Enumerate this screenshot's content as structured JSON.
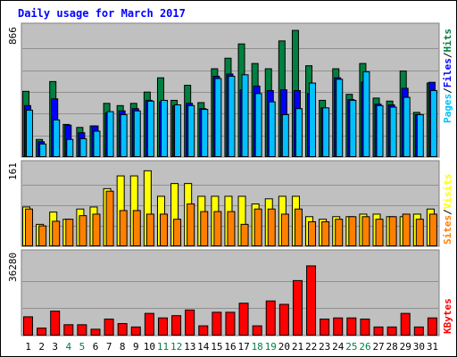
{
  "title": "Daily usage for March 2017",
  "panels": {
    "hits": {
      "max_label": "866",
      "labels": [
        "Pages",
        "Files",
        "Hits"
      ]
    },
    "visits": {
      "max_label": "161",
      "labels": [
        "Sites",
        "Visits"
      ]
    },
    "kbytes": {
      "max_label": "36280",
      "labels": [
        "KBytes"
      ]
    }
  },
  "colors": {
    "background": "#ffffff",
    "panel": "#c0c0c0",
    "border": "#808080",
    "grid": "#909090",
    "title": "#0000ff",
    "hits": "#008040",
    "files": "#0000ff",
    "pages": "#00c0ff",
    "visits": "#ffff00",
    "sites": "#ff8000",
    "kbytes": "#ff0000",
    "weekday_label": "#000000",
    "weekend_label": "#008040"
  },
  "chart_data": [
    {
      "type": "bar",
      "title": "Daily usage for March 2017",
      "categories": [
        "1",
        "2",
        "3",
        "4",
        "5",
        "6",
        "7",
        "8",
        "9",
        "10",
        "11",
        "12",
        "13",
        "14",
        "15",
        "16",
        "17",
        "18",
        "19",
        "20",
        "21",
        "22",
        "23",
        "24",
        "25",
        "26",
        "27",
        "28",
        "29",
        "30",
        "31"
      ],
      "weekend_days": [
        4,
        5,
        11,
        12,
        18,
        19,
        25,
        26
      ],
      "ylim": [
        0,
        866
      ],
      "y_max_label": "866",
      "series": [
        {
          "name": "Hits",
          "values": [
            440,
            120,
            505,
            220,
            200,
            210,
            360,
            345,
            360,
            435,
            530,
            380,
            480,
            365,
            590,
            660,
            755,
            625,
            590,
            775,
            845,
            610,
            380,
            590,
            420,
            625,
            395,
            375,
            575,
            300,
            495
          ]
        },
        {
          "name": "Files",
          "values": [
            345,
            105,
            390,
            215,
            165,
            210,
            295,
            310,
            325,
            380,
            370,
            345,
            360,
            325,
            540,
            555,
            450,
            475,
            445,
            450,
            445,
            425,
            330,
            530,
            385,
            500,
            355,
            350,
            460,
            285,
            500
          ]
        },
        {
          "name": "Pages",
          "values": [
            315,
            90,
            250,
            120,
            125,
            175,
            305,
            285,
            310,
            375,
            380,
            350,
            345,
            320,
            525,
            540,
            550,
            425,
            370,
            285,
            325,
            495,
            330,
            520,
            380,
            570,
            345,
            335,
            400,
            285,
            445
          ]
        }
      ]
    },
    {
      "type": "bar",
      "ylim": [
        0,
        161
      ],
      "y_max_label": "161",
      "series": [
        {
          "name": "Visits",
          "values": [
            78,
            44,
            68,
            54,
            74,
            78,
            114,
            139,
            139,
            149,
            99,
            124,
            124,
            99,
            99,
            99,
            99,
            84,
            94,
            99,
            99,
            59,
            54,
            59,
            59,
            64,
            64,
            59,
            59,
            64,
            74
          ]
        },
        {
          "name": "Sites",
          "values": [
            74,
            41,
            50,
            54,
            61,
            64,
            109,
            71,
            71,
            64,
            64,
            54,
            84,
            69,
            69,
            69,
            44,
            74,
            74,
            64,
            74,
            49,
            49,
            54,
            59,
            59,
            54,
            59,
            64,
            54,
            64
          ]
        }
      ]
    },
    {
      "type": "bar",
      "ylim": [
        0,
        36280
      ],
      "y_max_label": "36280",
      "series": [
        {
          "name": "KBytes",
          "values": [
            8500,
            3500,
            11000,
            5000,
            5000,
            3000,
            7500,
            5500,
            4000,
            10000,
            8000,
            9000,
            11500,
            4500,
            10500,
            10500,
            14500,
            4500,
            15500,
            14000,
            24500,
            31000,
            7500,
            8000,
            8000,
            7500,
            4000,
            4000,
            10000,
            4000,
            8000
          ]
        }
      ]
    }
  ]
}
